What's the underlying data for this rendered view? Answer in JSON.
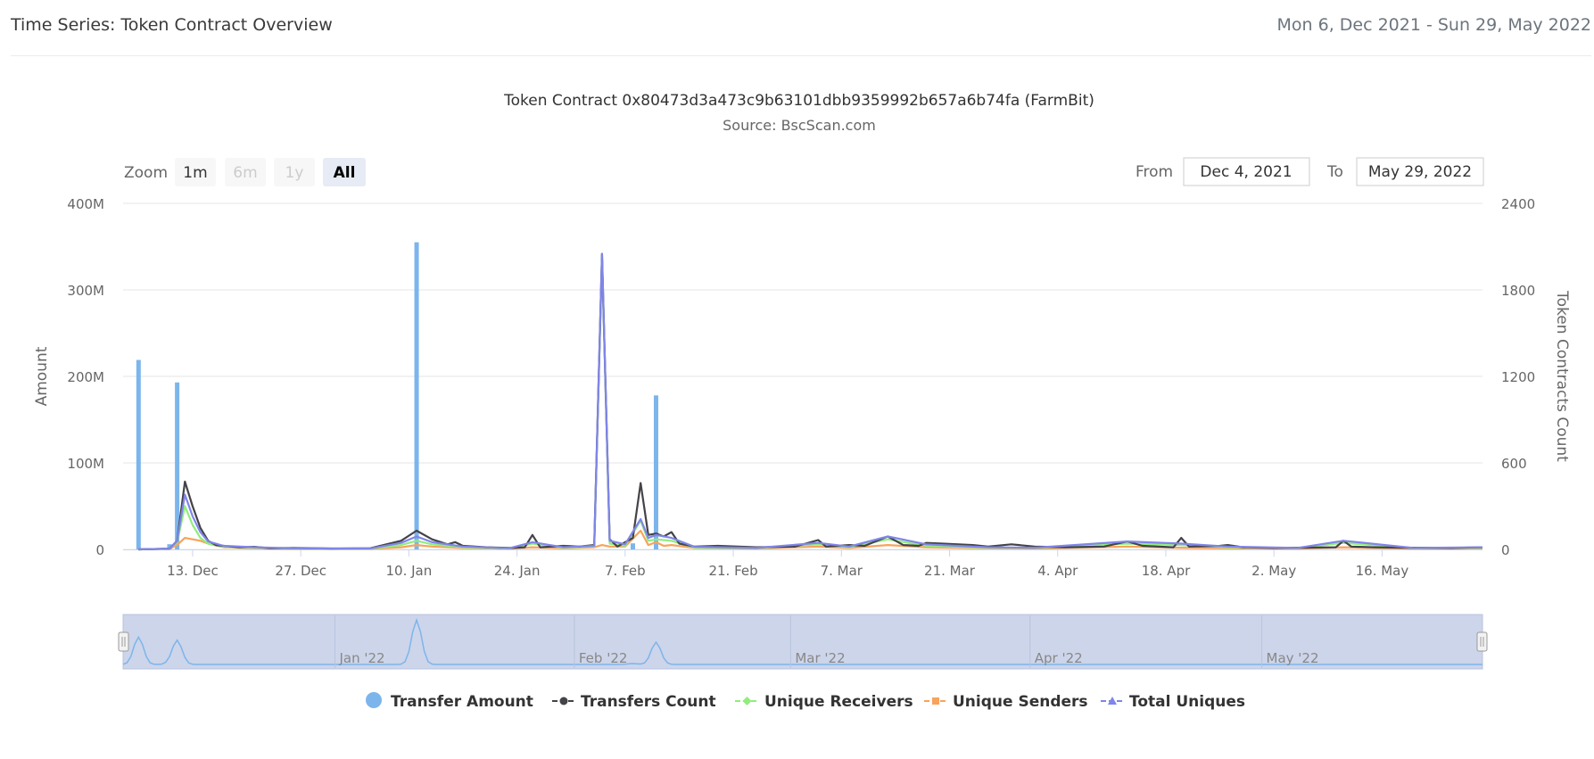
{
  "header": {
    "title": "Time Series: Token Contract Overview",
    "date_range": "Mon 6, Dec 2021 - Sun 29, May 2022"
  },
  "controls": {
    "zoom_label": "Zoom",
    "zoom_buttons": [
      "1m",
      "6m",
      "1y",
      "All"
    ],
    "from_label": "From",
    "from_value": "Dec 4, 2021",
    "to_label": "To",
    "to_value": "May 29, 2022"
  },
  "colors": {
    "transfer_amount": "#7cb5ec",
    "transfers_count": "#434348",
    "unique_receivers": "#90ed7d",
    "unique_senders": "#f7a35c",
    "total_uniques": "#8085e9",
    "navigator_fill": "#cdd5ea"
  },
  "chart_data": {
    "type": "bar+line",
    "title": "Token Contract 0x80473d3a473c9b63101dbb9359992b657a6b74fa (FarmBit)",
    "subtitle": "Source: BscScan.com",
    "x_start": "2021-12-06",
    "x_axis": {
      "ticks": [
        "13. Dec",
        "27. Dec",
        "10. Jan",
        "24. Jan",
        "7. Feb",
        "21. Feb",
        "7. Mar",
        "21. Mar",
        "4. Apr",
        "18. Apr",
        "2. May",
        "16. May"
      ],
      "tick_days": [
        7,
        21,
        35,
        49,
        63,
        77,
        91,
        105,
        119,
        133,
        147,
        161
      ],
      "range_days": [
        -2,
        174
      ]
    },
    "y_left": {
      "label": "Amount",
      "range": [
        0,
        400000000
      ],
      "ticks": [
        "0",
        "100M",
        "200M",
        "300M",
        "400M"
      ]
    },
    "y_right": {
      "label": "Token Contracts Count",
      "range": [
        0,
        2400
      ],
      "ticks": [
        "0",
        "600",
        "1200",
        "1800",
        "2400"
      ]
    },
    "navigator": {
      "labels": [
        "Jan '22",
        "Feb '22",
        "Mar '22",
        "Apr '22",
        "May '22"
      ],
      "label_days": [
        26,
        57,
        85,
        116,
        146
      ]
    },
    "legend": [
      "Transfer Amount",
      "Transfers Count",
      "Unique Receivers",
      "Unique Senders",
      "Total Uniques"
    ],
    "series": [
      {
        "name": "Transfer Amount",
        "axis": "left",
        "kind": "column",
        "points": [
          [
            0,
            219000000
          ],
          [
            4,
            6000000
          ],
          [
            5,
            193000000
          ],
          [
            36,
            355000000
          ],
          [
            64,
            7000000
          ],
          [
            67,
            178000000
          ]
        ]
      },
      {
        "name": "Transfers Count",
        "axis": "right",
        "kind": "line",
        "points": [
          [
            0,
            0
          ],
          [
            4,
            5
          ],
          [
            5,
            60
          ],
          [
            6,
            470
          ],
          [
            7,
            300
          ],
          [
            8,
            150
          ],
          [
            9,
            60
          ],
          [
            10,
            30
          ],
          [
            11,
            25
          ],
          [
            13,
            15
          ],
          [
            15,
            18
          ],
          [
            17,
            8
          ],
          [
            20,
            10
          ],
          [
            25,
            6
          ],
          [
            30,
            8
          ],
          [
            34,
            60
          ],
          [
            36,
            130
          ],
          [
            38,
            70
          ],
          [
            40,
            35
          ],
          [
            41,
            50
          ],
          [
            42,
            25
          ],
          [
            45,
            15
          ],
          [
            48,
            10
          ],
          [
            50,
            15
          ],
          [
            51,
            100
          ],
          [
            52,
            15
          ],
          [
            55,
            25
          ],
          [
            57,
            20
          ],
          [
            59,
            30
          ],
          [
            60,
            2050
          ],
          [
            61,
            70
          ],
          [
            62,
            20
          ],
          [
            63,
            50
          ],
          [
            64,
            80
          ],
          [
            65,
            460
          ],
          [
            66,
            100
          ],
          [
            67,
            110
          ],
          [
            68,
            90
          ],
          [
            69,
            120
          ],
          [
            70,
            40
          ],
          [
            72,
            20
          ],
          [
            75,
            25
          ],
          [
            80,
            15
          ],
          [
            85,
            20
          ],
          [
            88,
            65
          ],
          [
            89,
            20
          ],
          [
            92,
            30
          ],
          [
            94,
            25
          ],
          [
            97,
            90
          ],
          [
            99,
            30
          ],
          [
            101,
            25
          ],
          [
            102,
            45
          ],
          [
            104,
            40
          ],
          [
            108,
            30
          ],
          [
            110,
            20
          ],
          [
            113,
            35
          ],
          [
            116,
            20
          ],
          [
            120,
            15
          ],
          [
            125,
            20
          ],
          [
            128,
            55
          ],
          [
            130,
            25
          ],
          [
            134,
            15
          ],
          [
            135,
            80
          ],
          [
            136,
            20
          ],
          [
            140,
            25
          ],
          [
            141,
            30
          ],
          [
            143,
            15
          ],
          [
            147,
            10
          ],
          [
            150,
            12
          ],
          [
            155,
            15
          ],
          [
            156,
            60
          ],
          [
            157,
            20
          ],
          [
            160,
            15
          ],
          [
            165,
            12
          ],
          [
            170,
            10
          ],
          [
            174,
            15
          ]
        ]
      },
      {
        "name": "Unique Receivers",
        "axis": "right",
        "kind": "line",
        "points": [
          [
            0,
            0
          ],
          [
            4,
            5
          ],
          [
            5,
            50
          ],
          [
            6,
            300
          ],
          [
            7,
            170
          ],
          [
            8,
            80
          ],
          [
            9,
            40
          ],
          [
            11,
            18
          ],
          [
            15,
            12
          ],
          [
            20,
            6
          ],
          [
            25,
            4
          ],
          [
            30,
            5
          ],
          [
            34,
            30
          ],
          [
            36,
            60
          ],
          [
            38,
            35
          ],
          [
            42,
            15
          ],
          [
            48,
            6
          ],
          [
            51,
            40
          ],
          [
            55,
            12
          ],
          [
            59,
            20
          ],
          [
            60,
            2020
          ],
          [
            61,
            40
          ],
          [
            63,
            25
          ],
          [
            65,
            200
          ],
          [
            66,
            60
          ],
          [
            67,
            70
          ],
          [
            69,
            60
          ],
          [
            72,
            12
          ],
          [
            80,
            8
          ],
          [
            88,
            35
          ],
          [
            92,
            15
          ],
          [
            97,
            70
          ],
          [
            102,
            25
          ],
          [
            110,
            12
          ],
          [
            116,
            10
          ],
          [
            128,
            40
          ],
          [
            135,
            30
          ],
          [
            141,
            15
          ],
          [
            150,
            8
          ],
          [
            156,
            45
          ],
          [
            165,
            8
          ],
          [
            174,
            10
          ]
        ]
      },
      {
        "name": "Unique Senders",
        "axis": "right",
        "kind": "line",
        "points": [
          [
            0,
            0
          ],
          [
            4,
            5
          ],
          [
            5,
            30
          ],
          [
            6,
            80
          ],
          [
            7,
            70
          ],
          [
            8,
            60
          ],
          [
            9,
            40
          ],
          [
            11,
            15
          ],
          [
            15,
            8
          ],
          [
            20,
            4
          ],
          [
            25,
            3
          ],
          [
            30,
            4
          ],
          [
            34,
            15
          ],
          [
            36,
            30
          ],
          [
            38,
            20
          ],
          [
            42,
            10
          ],
          [
            48,
            5
          ],
          [
            51,
            15
          ],
          [
            55,
            8
          ],
          [
            59,
            15
          ],
          [
            60,
            30
          ],
          [
            61,
            20
          ],
          [
            63,
            20
          ],
          [
            65,
            130
          ],
          [
            66,
            30
          ],
          [
            67,
            50
          ],
          [
            68,
            25
          ],
          [
            69,
            30
          ],
          [
            72,
            10
          ],
          [
            80,
            6
          ],
          [
            88,
            20
          ],
          [
            92,
            10
          ],
          [
            97,
            30
          ],
          [
            102,
            15
          ],
          [
            110,
            8
          ],
          [
            116,
            6
          ],
          [
            128,
            20
          ],
          [
            135,
            12
          ],
          [
            141,
            8
          ],
          [
            150,
            5
          ],
          [
            156,
            15
          ],
          [
            165,
            5
          ],
          [
            174,
            6
          ]
        ]
      },
      {
        "name": "Total Uniques",
        "axis": "right",
        "kind": "line",
        "points": [
          [
            0,
            0
          ],
          [
            4,
            5
          ],
          [
            5,
            60
          ],
          [
            6,
            380
          ],
          [
            7,
            230
          ],
          [
            8,
            120
          ],
          [
            9,
            55
          ],
          [
            11,
            25
          ],
          [
            15,
            15
          ],
          [
            20,
            8
          ],
          [
            25,
            6
          ],
          [
            30,
            7
          ],
          [
            34,
            45
          ],
          [
            36,
            90
          ],
          [
            38,
            50
          ],
          [
            42,
            20
          ],
          [
            48,
            8
          ],
          [
            51,
            50
          ],
          [
            55,
            15
          ],
          [
            59,
            25
          ],
          [
            60,
            2050
          ],
          [
            61,
            60
          ],
          [
            63,
            35
          ],
          [
            65,
            210
          ],
          [
            66,
            80
          ],
          [
            67,
            100
          ],
          [
            69,
            80
          ],
          [
            72,
            18
          ],
          [
            80,
            10
          ],
          [
            88,
            45
          ],
          [
            92,
            20
          ],
          [
            97,
            90
          ],
          [
            102,
            35
          ],
          [
            110,
            15
          ],
          [
            116,
            12
          ],
          [
            128,
            55
          ],
          [
            135,
            40
          ],
          [
            141,
            20
          ],
          [
            150,
            10
          ],
          [
            156,
            60
          ],
          [
            165,
            10
          ],
          [
            174,
            15
          ]
        ]
      }
    ]
  }
}
